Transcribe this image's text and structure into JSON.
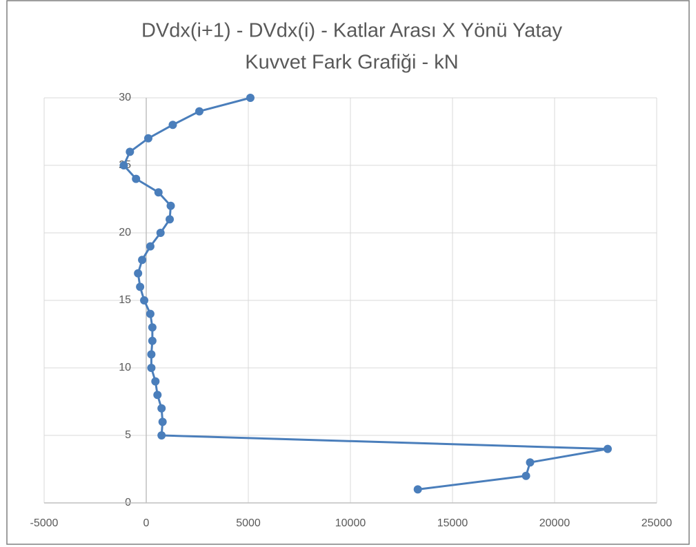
{
  "chart_data": {
    "type": "scatter_line",
    "title": [
      "DVdx(i+1) - DVdx(i) - Katlar Arası X Yönü Yatay",
      "Kuvvet Fark Grafiği - kN"
    ],
    "x": [
      13300,
      18600,
      18800,
      22600,
      750,
      800,
      750,
      550,
      450,
      250,
      250,
      300,
      300,
      200,
      -100,
      -300,
      -400,
      -200,
      200,
      700,
      1150,
      1200,
      600,
      -500,
      -1100,
      -800,
      100,
      1300,
      2600,
      5100
    ],
    "y": [
      1,
      2,
      3,
      4,
      5,
      6,
      7,
      8,
      9,
      10,
      11,
      12,
      13,
      14,
      15,
      16,
      17,
      18,
      19,
      20,
      21,
      22,
      23,
      24,
      25,
      26,
      27,
      28,
      29,
      30
    ],
    "color": "#4a7ebb",
    "xlim": [
      -5000,
      25000
    ],
    "xticks": [
      -5000,
      0,
      5000,
      10000,
      15000,
      20000,
      25000
    ],
    "ylim": [
      0,
      30
    ],
    "yticks": [
      0,
      5,
      10,
      15,
      20,
      25,
      30
    ],
    "grid": true
  }
}
